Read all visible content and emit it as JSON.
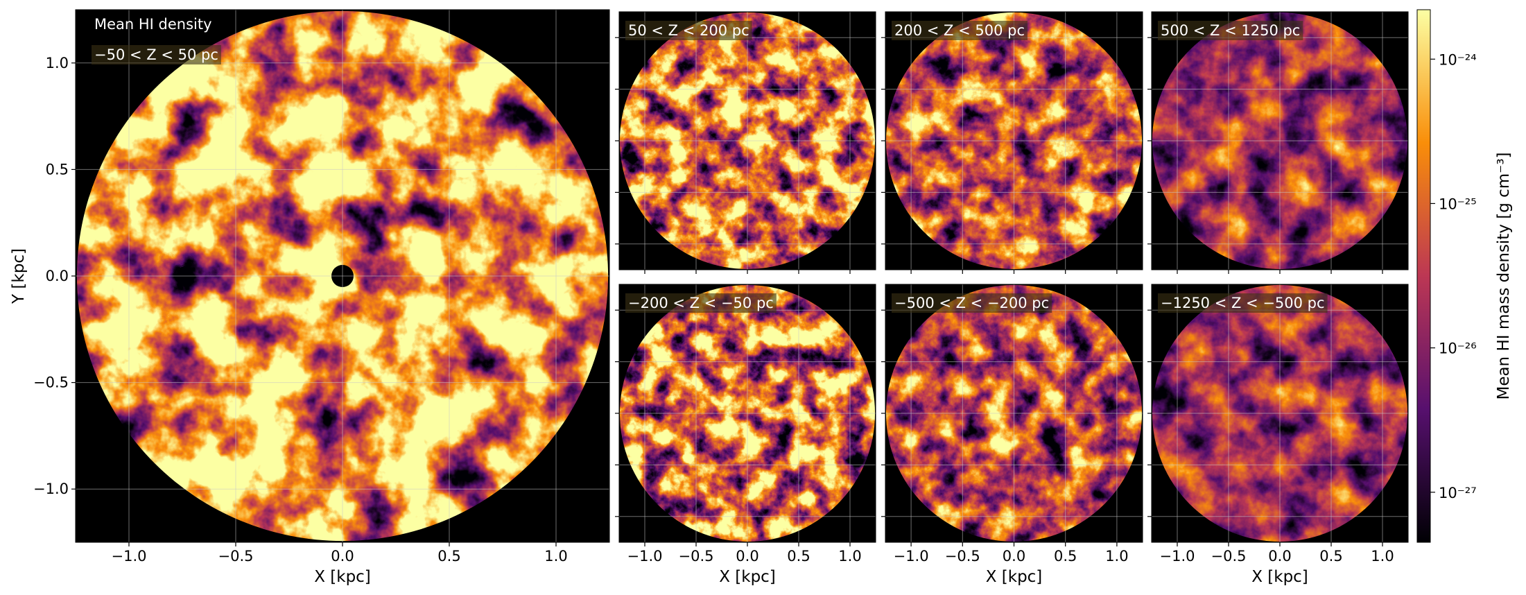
{
  "chart_data": [
    {
      "type": "heatmap",
      "title": "Mean HI density",
      "annotation": "−50 < Z < 50 pc",
      "xlabel": "X [kpc]",
      "ylabel": "Y [kpc]",
      "xlim": [
        -1.25,
        1.25
      ],
      "ylim": [
        -1.25,
        1.25
      ],
      "xticks": [
        {
          "value": -1,
          "label": "−1.0"
        },
        {
          "value": -0.5,
          "label": "−0.5"
        },
        {
          "value": 0,
          "label": "0.0"
        },
        0.5,
        {
          "value": 1,
          "label": "1.0"
        }
      ],
      "yticks": [
        {
          "value": -1,
          "label": "−1.0"
        },
        {
          "value": -0.5,
          "label": "−0.5"
        },
        {
          "value": 0,
          "label": "0.0"
        },
        0.5,
        {
          "value": 1,
          "label": "1.0"
        }
      ],
      "grid": true
    },
    {
      "type": "heatmap",
      "annotation": "50 < Z < 200 pc",
      "xlim": [
        -1.25,
        1.25
      ],
      "ylim": [
        -1.25,
        1.25
      ],
      "xticks": [
        -1,
        -0.5,
        0,
        0.5,
        1
      ],
      "yticks": [
        -1,
        -0.5,
        0,
        0.5,
        1
      ],
      "grid": true
    },
    {
      "type": "heatmap",
      "annotation": "200 < Z < 500 pc",
      "xlim": [
        -1.25,
        1.25
      ],
      "ylim": [
        -1.25,
        1.25
      ],
      "xticks": [
        -1,
        -0.5,
        0,
        0.5,
        1
      ],
      "yticks": [
        -1,
        -0.5,
        0,
        0.5,
        1
      ],
      "grid": true
    },
    {
      "type": "heatmap",
      "annotation": "500 < Z < 1250 pc",
      "xlim": [
        -1.25,
        1.25
      ],
      "ylim": [
        -1.25,
        1.25
      ],
      "xticks": [
        -1,
        -0.5,
        0,
        0.5,
        1
      ],
      "yticks": [
        -1,
        -0.5,
        0,
        0.5,
        1
      ],
      "grid": true
    },
    {
      "type": "heatmap",
      "annotation": "−200 < Z < −50 pc",
      "xlabel": "X [kpc]",
      "xlim": [
        -1.25,
        1.25
      ],
      "ylim": [
        -1.25,
        1.25
      ],
      "xticks": [
        {
          "value": -1,
          "label": "−1.0"
        },
        {
          "value": -0.5,
          "label": "−0.5"
        },
        {
          "value": 0,
          "label": "0.0"
        },
        0.5,
        {
          "value": 1,
          "label": "1.0"
        }
      ],
      "yticks": [
        -1,
        -0.5,
        0,
        0.5,
        1
      ],
      "grid": true
    },
    {
      "type": "heatmap",
      "annotation": "−500 < Z < −200 pc",
      "xlabel": "X [kpc]",
      "xlim": [
        -1.25,
        1.25
      ],
      "ylim": [
        -1.25,
        1.25
      ],
      "xticks": [
        {
          "value": -1,
          "label": "−1.0"
        },
        {
          "value": -0.5,
          "label": "−0.5"
        },
        {
          "value": 0,
          "label": "0.0"
        },
        0.5,
        {
          "value": 1,
          "label": "1.0"
        }
      ],
      "yticks": [
        -1,
        -0.5,
        0,
        0.5,
        1
      ],
      "grid": true
    },
    {
      "type": "heatmap",
      "annotation": "−1250 < Z < −500 pc",
      "xlabel": "X [kpc]",
      "xlim": [
        -1.25,
        1.25
      ],
      "ylim": [
        -1.25,
        1.25
      ],
      "xticks": [
        {
          "value": -1,
          "label": "−1.0"
        },
        {
          "value": -0.5,
          "label": "−0.5"
        },
        {
          "value": 0,
          "label": "0.0"
        },
        0.5,
        {
          "value": 1,
          "label": "1.0"
        }
      ],
      "yticks": [
        -1,
        -0.5,
        0,
        0.5,
        1
      ],
      "grid": true
    },
    {
      "type": "colorbar",
      "label": "Mean HI mass density [g cm⁻³]",
      "log_scale": true,
      "ylim": [
        4.5e-28,
        2.2e-24
      ],
      "yticks": [
        {
          "value": 1e-27,
          "label": "10⁻²⁷"
        },
        {
          "value": 1e-26,
          "label": "10⁻²⁶"
        },
        {
          "value": 1e-25,
          "label": "10⁻²⁵"
        },
        {
          "value": 1e-24,
          "label": "10⁻²⁴"
        }
      ]
    }
  ]
}
